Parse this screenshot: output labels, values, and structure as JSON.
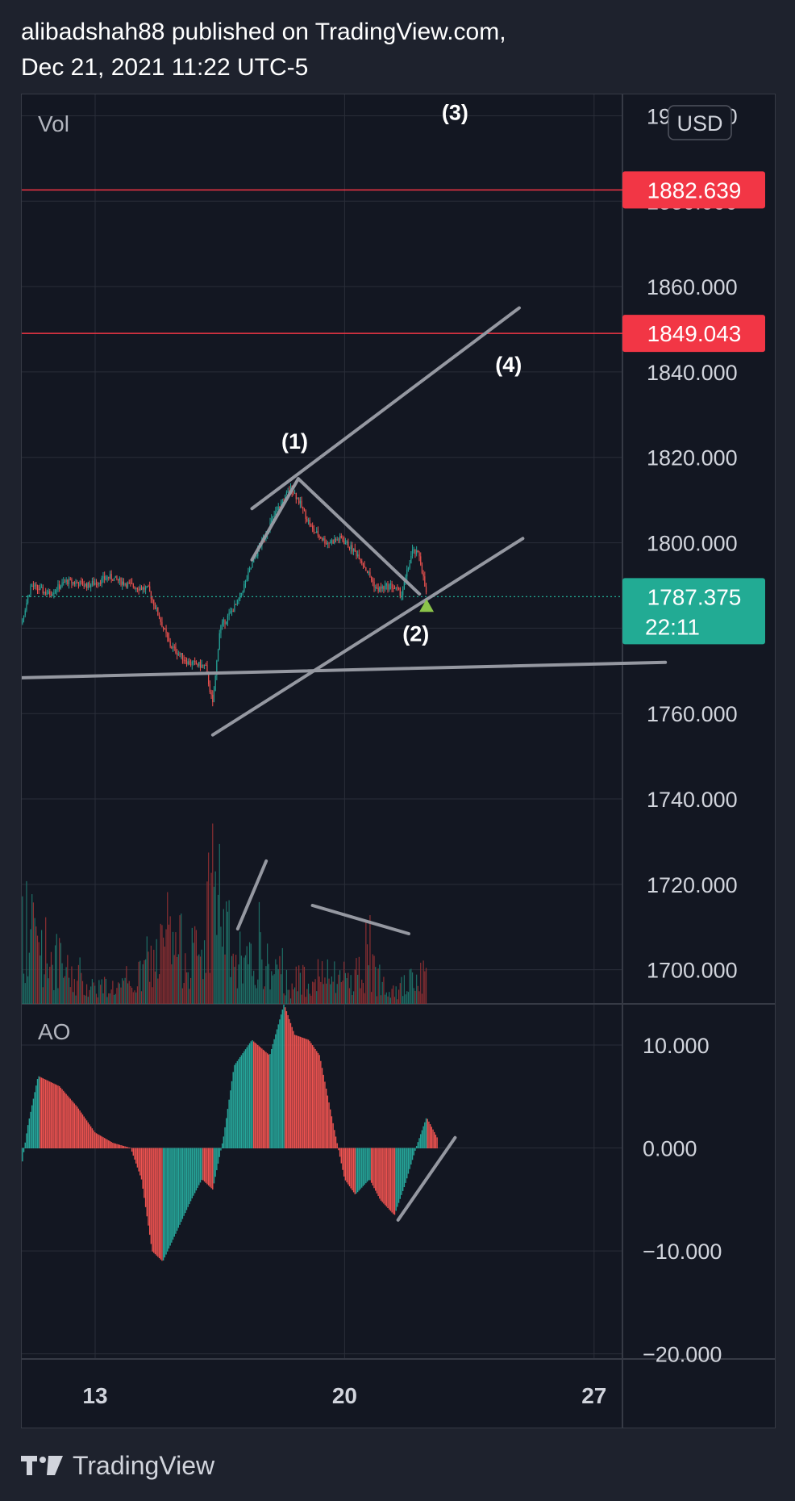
{
  "header": {
    "line1": "alibadshah88 published on TradingView.com,",
    "line2": "Dec 21, 2021 11:22 UTC-5"
  },
  "footer": {
    "brand": "TradingView"
  },
  "chart_data": {
    "type": "candlestick",
    "currency": "USD",
    "price_axis": {
      "ticks": [
        "1900.000",
        "1880.000",
        "1860.000",
        "1840.000",
        "1820.000",
        "1800.000",
        "1780.000",
        "1760.000",
        "1740.000",
        "1720.000",
        "1700.000"
      ],
      "range": [
        1692,
        1905
      ]
    },
    "time_axis": {
      "ticks": [
        "13",
        "20",
        "27"
      ]
    },
    "volume_label": "Vol",
    "indicator": {
      "name": "AO",
      "ticks": [
        "10.000",
        "0.000",
        "−10.000",
        "−20.000"
      ],
      "range": [
        -20.5,
        14
      ]
    },
    "price_lines": [
      {
        "value": 1882.639,
        "label": "1882.639",
        "color": "#f23645"
      },
      {
        "value": 1849.043,
        "label": "1849.043",
        "color": "#f23645"
      }
    ],
    "last_price": {
      "label": "1787.375",
      "value": 1787.375,
      "countdown": "22:11",
      "color": "#22ab94"
    },
    "wave_labels": [
      {
        "text": "(1)",
        "price": 1822,
        "day": 18.6
      },
      {
        "text": "(2)",
        "price": 1777,
        "day": 22.0
      },
      {
        "text": "(3)",
        "price": 1899,
        "day": 23.1
      },
      {
        "text": "(4)",
        "price": 1840,
        "day": 24.6
      }
    ],
    "ohlc_keypoints": [
      {
        "day": 10.0,
        "price": 1779
      },
      {
        "day": 10.3,
        "price": 1782
      },
      {
        "day": 10.7,
        "price": 1774
      },
      {
        "day": 11.2,
        "price": 1790
      },
      {
        "day": 11.7,
        "price": 1788
      },
      {
        "day": 12.2,
        "price": 1791
      },
      {
        "day": 12.8,
        "price": 1790
      },
      {
        "day": 13.4,
        "price": 1792
      },
      {
        "day": 14.0,
        "price": 1790
      },
      {
        "day": 14.5,
        "price": 1789
      },
      {
        "day": 15.1,
        "price": 1776
      },
      {
        "day": 15.6,
        "price": 1772
      },
      {
        "day": 16.1,
        "price": 1771
      },
      {
        "day": 16.3,
        "price": 1762
      },
      {
        "day": 16.5,
        "price": 1780
      },
      {
        "day": 17.0,
        "price": 1786
      },
      {
        "day": 17.5,
        "price": 1797
      },
      {
        "day": 18.0,
        "price": 1806
      },
      {
        "day": 18.5,
        "price": 1813
      },
      {
        "day": 18.7,
        "price": 1810
      },
      {
        "day": 19.1,
        "price": 1803
      },
      {
        "day": 19.5,
        "price": 1800
      },
      {
        "day": 19.9,
        "price": 1801
      },
      {
        "day": 20.4,
        "price": 1797
      },
      {
        "day": 20.9,
        "price": 1789
      },
      {
        "day": 21.3,
        "price": 1790
      },
      {
        "day": 21.6,
        "price": 1788
      },
      {
        "day": 21.9,
        "price": 1798
      },
      {
        "day": 22.1,
        "price": 1797
      },
      {
        "day": 22.3,
        "price": 1787.4
      }
    ],
    "volume_keypoints": [
      {
        "day": 10.0,
        "v": 0.08
      },
      {
        "day": 11.0,
        "v": 0.6
      },
      {
        "day": 12.5,
        "v": 0.15
      },
      {
        "day": 14.0,
        "v": 0.12
      },
      {
        "day": 15.0,
        "v": 0.45
      },
      {
        "day": 16.0,
        "v": 0.35
      },
      {
        "day": 16.3,
        "v": 1.0
      },
      {
        "day": 17.0,
        "v": 0.2
      },
      {
        "day": 17.5,
        "v": 0.35
      },
      {
        "day": 18.5,
        "v": 0.15
      },
      {
        "day": 19.0,
        "v": 0.22
      },
      {
        "day": 20.0,
        "v": 0.18
      },
      {
        "day": 20.6,
        "v": 0.28
      },
      {
        "day": 21.5,
        "v": 0.12
      },
      {
        "day": 22.3,
        "v": 0.22
      }
    ],
    "ao_keypoints": [
      {
        "day": 10.0,
        "v": -5
      },
      {
        "day": 10.5,
        "v": -2
      },
      {
        "day": 10.8,
        "v": -5
      },
      {
        "day": 11.1,
        "v": 2
      },
      {
        "day": 11.4,
        "v": 7
      },
      {
        "day": 12.0,
        "v": 6
      },
      {
        "day": 12.5,
        "v": 4
      },
      {
        "day": 13.0,
        "v": 1.5
      },
      {
        "day": 13.5,
        "v": 0.5
      },
      {
        "day": 14.0,
        "v": 0
      },
      {
        "day": 14.3,
        "v": -3
      },
      {
        "day": 14.6,
        "v": -10
      },
      {
        "day": 14.9,
        "v": -11
      },
      {
        "day": 15.3,
        "v": -8
      },
      {
        "day": 15.7,
        "v": -5
      },
      {
        "day": 16.0,
        "v": -3
      },
      {
        "day": 16.3,
        "v": -4
      },
      {
        "day": 16.6,
        "v": 1
      },
      {
        "day": 16.9,
        "v": 8
      },
      {
        "day": 17.4,
        "v": 10.5
      },
      {
        "day": 17.9,
        "v": 9
      },
      {
        "day": 18.3,
        "v": 14
      },
      {
        "day": 18.6,
        "v": 11
      },
      {
        "day": 19.0,
        "v": 10.5
      },
      {
        "day": 19.3,
        "v": 9
      },
      {
        "day": 19.7,
        "v": 2
      },
      {
        "day": 20.0,
        "v": -3
      },
      {
        "day": 20.3,
        "v": -4.5
      },
      {
        "day": 20.7,
        "v": -3
      },
      {
        "day": 21.0,
        "v": -5
      },
      {
        "day": 21.4,
        "v": -6.5
      },
      {
        "day": 21.7,
        "v": -3.5
      },
      {
        "day": 22.0,
        "v": 0
      },
      {
        "day": 22.3,
        "v": 3
      },
      {
        "day": 22.6,
        "v": 1
      }
    ]
  }
}
